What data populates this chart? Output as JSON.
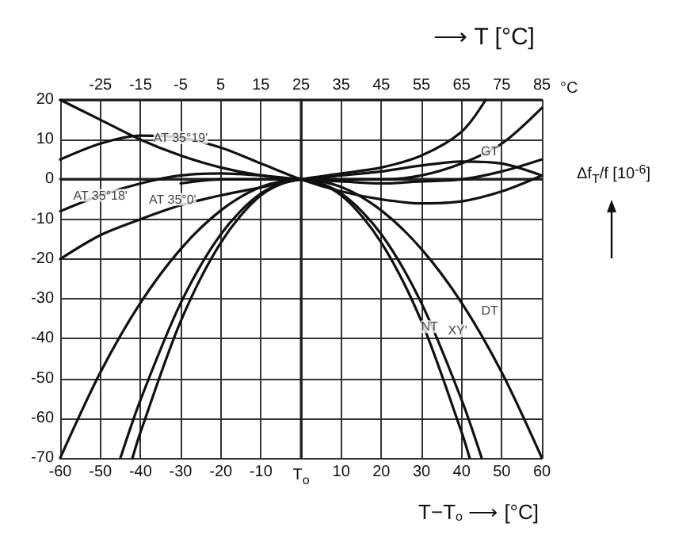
{
  "chart_data": {
    "type": "line",
    "title": "⟶ T [°C]",
    "xlabel": "T−T$_{o}$ ⟶ [°C]",
    "ylabel": "Δf$_{T}$/f [10$^{-6}$]",
    "x2label": "°C",
    "xlim": [
      -60,
      60
    ],
    "xticks": [
      -60,
      -50,
      -40,
      -30,
      -20,
      -10,
      {
        "value": 0,
        "label": "T$_{o}$"
      },
      10,
      20,
      30,
      40,
      50,
      60
    ],
    "x2lim": [
      -35,
      85
    ],
    "x2ticks": [
      -25,
      -15,
      -5,
      5,
      15,
      25,
      35,
      45,
      55,
      65,
      75,
      85
    ],
    "ylim": [
      -70,
      20
    ],
    "yticks": [
      -70,
      -60,
      -50,
      -40,
      -30,
      -20,
      -10,
      0,
      10,
      20
    ],
    "grid": true,
    "marker": "none",
    "line_style": "solid",
    "series": [
      {
        "color": "#111111",
        "x": [
          -60,
          -50,
          -40,
          -30,
          -20,
          -10,
          0,
          10,
          20,
          30,
          40,
          50,
          60
        ],
        "values": [
          5,
          9,
          11,
          10.5,
          8,
          4,
          0,
          -3,
          -5,
          -6,
          -5.5,
          -3,
          1
        ]
      },
      {
        "color": "#111111",
        "x": [
          -60,
          -50,
          -40,
          -30,
          -20,
          -10,
          0,
          10,
          20,
          30,
          40,
          50,
          60
        ],
        "values": [
          -8,
          -4,
          -1,
          1,
          1.5,
          1,
          0,
          -0.5,
          -1,
          -0.5,
          0,
          2,
          5
        ]
      },
      {
        "color": "#111111",
        "x": [
          -60,
          -50,
          -40,
          -30,
          -20,
          -10,
          0,
          10,
          20,
          30,
          40,
          46
        ],
        "values": [
          -20,
          -14,
          -10,
          -6.5,
          -4,
          -2,
          0,
          1.5,
          3,
          6,
          12,
          20
        ]
      },
      {
        "color": "#111111",
        "x": [
          -60,
          -50,
          -40,
          -30,
          -20,
          -10,
          0,
          10,
          20,
          30,
          40,
          50,
          60
        ],
        "values": [
          20,
          15,
          10,
          6,
          3,
          1,
          0,
          0,
          0,
          1,
          4,
          9,
          18
        ]
      },
      {
        "color": "#111111",
        "x": [
          -30,
          -20,
          -10,
          0,
          10,
          20,
          30,
          40,
          50,
          60
        ],
        "values": [
          -1,
          0,
          0,
          0,
          1,
          2,
          3.5,
          4.5,
          4,
          1
        ]
      },
      {
        "color": "#111111",
        "x": [
          -60,
          -50,
          -40,
          -30,
          -20,
          -10,
          0,
          10,
          20,
          30,
          40,
          50,
          60
        ],
        "values": [
          -70,
          -48.5,
          -31,
          -17.5,
          -7.8,
          -1.9,
          0,
          -1.9,
          -7.8,
          -17.5,
          -31,
          -48.5,
          -70
        ]
      },
      {
        "color": "#111111",
        "x": [
          -42,
          -40,
          -30,
          -20,
          -10,
          0,
          10,
          20,
          30,
          40,
          42
        ],
        "values": [
          -70,
          -63.5,
          -35.7,
          -15.9,
          -4,
          0,
          -4,
          -15.9,
          -35.7,
          -63.5,
          -70
        ]
      },
      {
        "color": "#111111",
        "x": [
          -45,
          -40,
          -30,
          -20,
          -10,
          0,
          10,
          20,
          30,
          40,
          45
        ],
        "values": [
          -70,
          -55.4,
          -31.1,
          -13.8,
          -3.5,
          0,
          -3.5,
          -13.8,
          -31.1,
          -55.4,
          -70
        ]
      }
    ],
    "annotations": [
      {
        "text": "AT 35°19'",
        "x": -30,
        "y": 10.5
      },
      {
        "text": "AT 35°18'",
        "x": -50,
        "y": -4
      },
      {
        "text": "AT 35°0'",
        "x": -32,
        "y": -5
      },
      {
        "text": "GT",
        "x": 47,
        "y": 7
      },
      {
        "text": "NT",
        "x": 32,
        "y": -37
      },
      {
        "text": "XY'",
        "x": 39,
        "y": -38
      },
      {
        "text": "DT",
        "x": 47,
        "y": -33
      }
    ]
  }
}
